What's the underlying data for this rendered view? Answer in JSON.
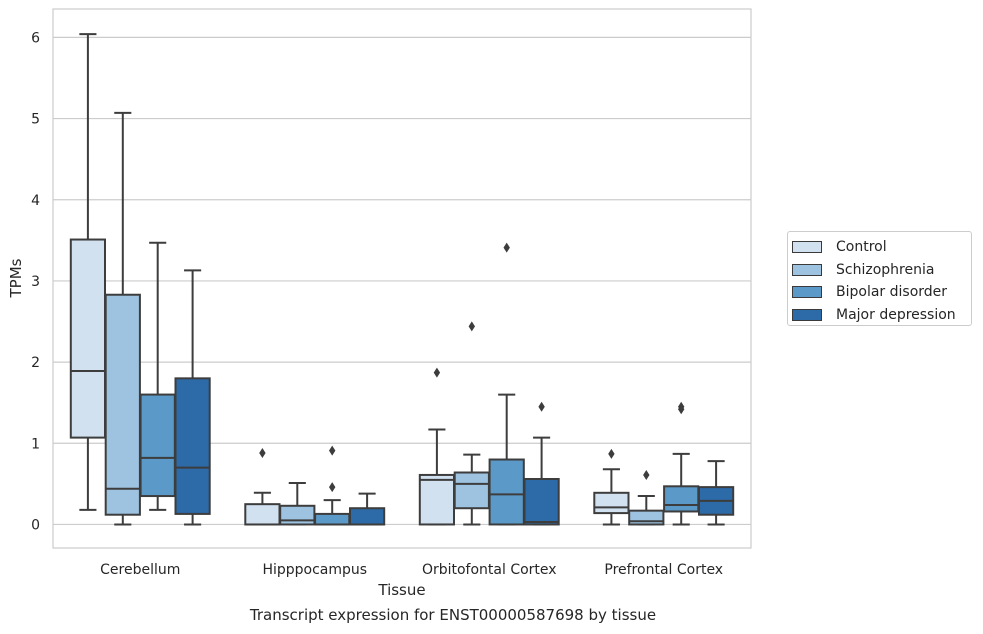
{
  "caption": "Transcript expression for ENST00000587698 by tissue",
  "chart_data": {
    "type": "box",
    "xlabel": "Tissue",
    "ylabel": "TPMs",
    "ylim": [
      -0.29,
      6.35
    ],
    "yticks": [
      0,
      1,
      2,
      3,
      4,
      5,
      6
    ],
    "grid": true,
    "legend_position": "right",
    "categories": [
      "Cerebellum",
      "Hipppocampus",
      "Orbitofontal Cortex",
      "Prefrontal Cortex"
    ],
    "series": [
      {
        "name": "Control",
        "color": "#d1e1f0",
        "boxes": [
          {
            "whislo": 0.18,
            "q1": 1.07,
            "med": 1.89,
            "q3": 3.51,
            "whishi": 6.04,
            "fliers": []
          },
          {
            "whislo": 0.0,
            "q1": 0.0,
            "med": 0.0,
            "q3": 0.25,
            "whishi": 0.39,
            "fliers": [
              0.88
            ]
          },
          {
            "whislo": 0.0,
            "q1": 0.0,
            "med": 0.55,
            "q3": 0.61,
            "whishi": 1.17,
            "fliers": [
              1.87
            ]
          },
          {
            "whislo": 0.0,
            "q1": 0.14,
            "med": 0.21,
            "q3": 0.39,
            "whishi": 0.68,
            "fliers": [
              0.87
            ]
          }
        ]
      },
      {
        "name": "Schizophrenia",
        "color": "#9dc3e0",
        "boxes": [
          {
            "whislo": 0.0,
            "q1": 0.12,
            "med": 0.44,
            "q3": 2.83,
            "whishi": 5.07,
            "fliers": []
          },
          {
            "whislo": 0.0,
            "q1": 0.0,
            "med": 0.05,
            "q3": 0.23,
            "whishi": 0.51,
            "fliers": []
          },
          {
            "whislo": 0.0,
            "q1": 0.2,
            "med": 0.5,
            "q3": 0.64,
            "whishi": 0.86,
            "fliers": [
              2.44
            ]
          },
          {
            "whislo": 0.0,
            "q1": 0.0,
            "med": 0.04,
            "q3": 0.17,
            "whishi": 0.35,
            "fliers": [
              0.61
            ]
          }
        ]
      },
      {
        "name": "Bipolar disorder",
        "color": "#5b9ac8",
        "boxes": [
          {
            "whislo": 0.18,
            "q1": 0.35,
            "med": 0.82,
            "q3": 1.6,
            "whishi": 3.47,
            "fliers": []
          },
          {
            "whislo": 0.0,
            "q1": 0.0,
            "med": 0.0,
            "q3": 0.13,
            "whishi": 0.3,
            "fliers": [
              0.46,
              0.91
            ]
          },
          {
            "whislo": 0.0,
            "q1": 0.0,
            "med": 0.37,
            "q3": 0.8,
            "whishi": 1.6,
            "fliers": [
              3.41
            ]
          },
          {
            "whislo": 0.0,
            "q1": 0.16,
            "med": 0.24,
            "q3": 0.47,
            "whishi": 0.87,
            "fliers": [
              1.42,
              1.45
            ]
          }
        ]
      },
      {
        "name": "Major depression",
        "color": "#2c6aa8",
        "boxes": [
          {
            "whislo": 0.0,
            "q1": 0.13,
            "med": 0.7,
            "q3": 1.8,
            "whishi": 3.13,
            "fliers": []
          },
          {
            "whislo": 0.0,
            "q1": 0.0,
            "med": 0.0,
            "q3": 0.2,
            "whishi": 0.38,
            "fliers": []
          },
          {
            "whislo": 0.0,
            "q1": 0.0,
            "med": 0.03,
            "q3": 0.56,
            "whishi": 1.07,
            "fliers": [
              1.45
            ]
          },
          {
            "whislo": 0.0,
            "q1": 0.12,
            "med": 0.29,
            "q3": 0.46,
            "whishi": 0.78,
            "fliers": []
          }
        ]
      }
    ]
  }
}
